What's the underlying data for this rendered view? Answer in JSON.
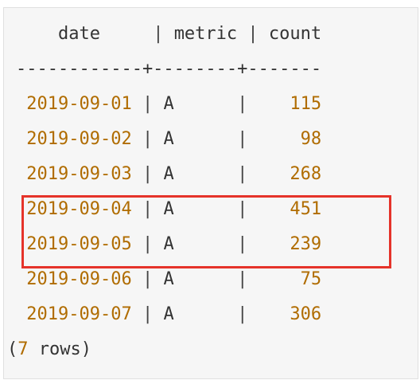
{
  "query_output": {
    "header": {
      "col1": "date",
      "col2": "metric",
      "col3": "count"
    },
    "divider": "------------+--------+-------",
    "rows": [
      {
        "date": "2019-09-01",
        "metric": "A",
        "count": "115"
      },
      {
        "date": "2019-09-02",
        "metric": "A",
        "count": "98"
      },
      {
        "date": "2019-09-03",
        "metric": "A",
        "count": "268"
      },
      {
        "date": "2019-09-04",
        "metric": "A",
        "count": "451"
      },
      {
        "date": "2019-09-05",
        "metric": "A",
        "count": "239"
      },
      {
        "date": "2019-09-06",
        "metric": "A",
        "count": "75"
      },
      {
        "date": "2019-09-07",
        "metric": "A",
        "count": "306"
      }
    ],
    "footer": {
      "open": "(",
      "count": "7",
      "label": " rows)"
    }
  },
  "colors": {
    "number": "#b06c00",
    "text": "#333333",
    "highlight": "#e5332a",
    "background": "#f6f6f6"
  }
}
